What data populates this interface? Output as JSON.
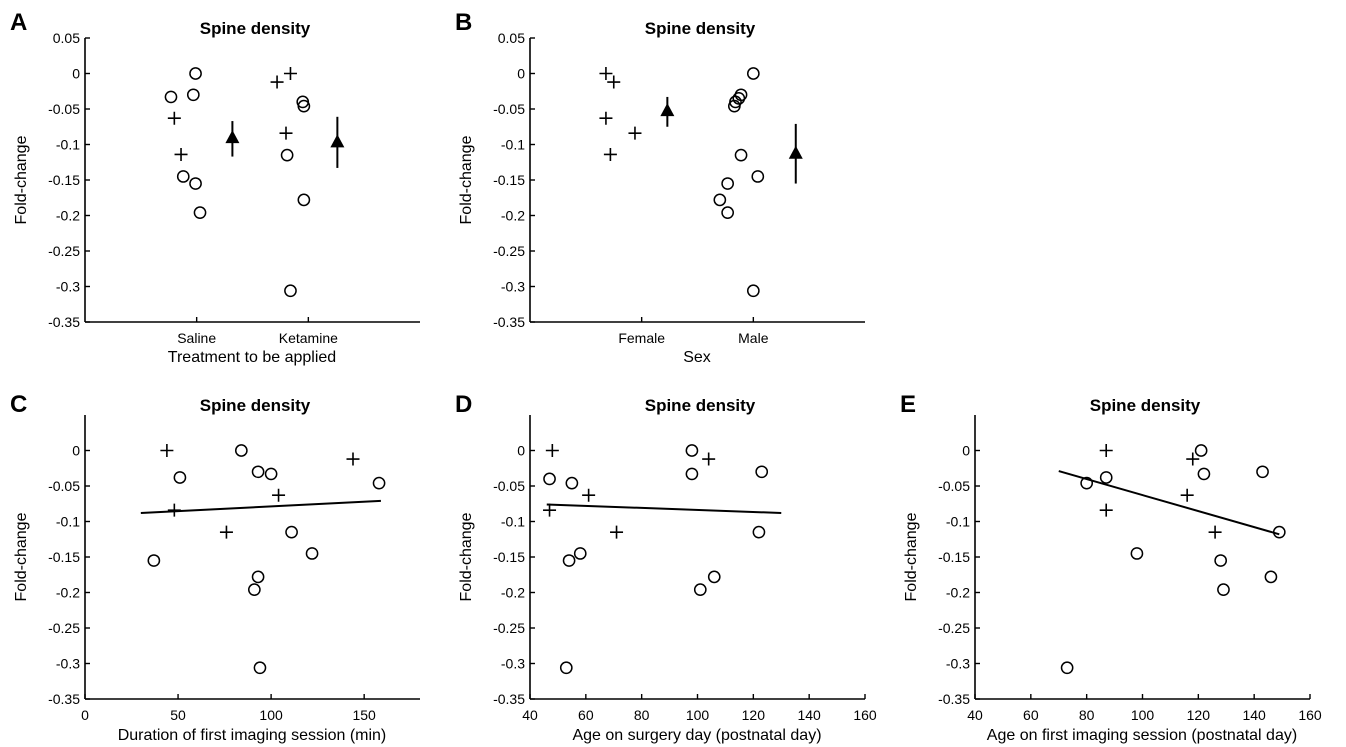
{
  "chart_data": [
    {
      "id": "A",
      "panel_label": "A",
      "type": "scatter",
      "title": "Spine density",
      "xlabel": "Treatment to be applied",
      "ylabel": "Fold-change",
      "ylim": [
        -0.35,
        0.05
      ],
      "yticks": [
        0.05,
        0,
        -0.05,
        -0.1,
        -0.15,
        -0.2,
        -0.25,
        -0.3,
        -0.35
      ],
      "ytick_labels": [
        "0.05",
        "0",
        "-0.05",
        "-0.1",
        "-0.15",
        "-0.2",
        "-0.25",
        "-0.3",
        "-0.35"
      ],
      "xlim": [
        0,
        3
      ],
      "categories": [
        "Saline",
        "Ketamine"
      ],
      "category_positions": [
        1,
        2
      ],
      "points": [
        {
          "x": 0.77,
          "y": -0.033,
          "m": "o"
        },
        {
          "x": 0.8,
          "y": -0.063,
          "m": "+"
        },
        {
          "x": 0.86,
          "y": -0.114,
          "m": "+"
        },
        {
          "x": 0.88,
          "y": -0.145,
          "m": "o"
        },
        {
          "x": 0.97,
          "y": -0.03,
          "m": "o"
        },
        {
          "x": 0.99,
          "y": 0.0,
          "m": "o"
        },
        {
          "x": 0.99,
          "y": -0.155,
          "m": "o"
        },
        {
          "x": 1.03,
          "y": -0.196,
          "m": "o"
        },
        {
          "x": 1.72,
          "y": -0.012,
          "m": "+"
        },
        {
          "x": 1.8,
          "y": -0.084,
          "m": "+"
        },
        {
          "x": 1.81,
          "y": -0.115,
          "m": "o"
        },
        {
          "x": 1.84,
          "y": 0.0,
          "m": "+"
        },
        {
          "x": 1.84,
          "y": -0.306,
          "m": "o"
        },
        {
          "x": 1.95,
          "y": -0.04,
          "m": "o"
        },
        {
          "x": 1.96,
          "y": -0.046,
          "m": "o"
        },
        {
          "x": 1.96,
          "y": -0.178,
          "m": "o"
        }
      ],
      "means": [
        {
          "x": 1.32,
          "y": -0.091,
          "lo": -0.117,
          "hi": -0.067
        },
        {
          "x": 2.26,
          "y": -0.097,
          "lo": -0.133,
          "hi": -0.061
        }
      ]
    },
    {
      "id": "B",
      "panel_label": "B",
      "type": "scatter",
      "title": "Spine density",
      "xlabel": "Sex",
      "ylabel": "Fold-change",
      "ylim": [
        -0.35,
        0.05
      ],
      "yticks": [
        0.05,
        0,
        -0.05,
        -0.1,
        -0.15,
        -0.2,
        -0.25,
        -0.3,
        -0.35
      ],
      "ytick_labels": [
        "0.05",
        "0",
        "-0.05",
        "-0.1",
        "-0.15",
        "-0.2",
        "-0.25",
        "-0.3",
        "-0.35"
      ],
      "xlim": [
        0,
        3
      ],
      "categories": [
        "Female",
        "Male"
      ],
      "category_positions": [
        1,
        2
      ],
      "points": [
        {
          "x": 0.68,
          "y": 0.0,
          "m": "+"
        },
        {
          "x": 0.68,
          "y": -0.063,
          "m": "+"
        },
        {
          "x": 0.72,
          "y": -0.114,
          "m": "+"
        },
        {
          "x": 0.75,
          "y": -0.012,
          "m": "+"
        },
        {
          "x": 0.94,
          "y": -0.084,
          "m": "+"
        },
        {
          "x": 1.7,
          "y": -0.178,
          "m": "o"
        },
        {
          "x": 1.77,
          "y": -0.155,
          "m": "o"
        },
        {
          "x": 1.77,
          "y": -0.196,
          "m": "o"
        },
        {
          "x": 1.83,
          "y": -0.046,
          "m": "o"
        },
        {
          "x": 1.84,
          "y": -0.04,
          "m": "o"
        },
        {
          "x": 1.87,
          "y": -0.035,
          "m": "o"
        },
        {
          "x": 1.89,
          "y": -0.03,
          "m": "o"
        },
        {
          "x": 1.89,
          "y": -0.115,
          "m": "o"
        },
        {
          "x": 2.0,
          "y": 0.0,
          "m": "o"
        },
        {
          "x": 2.0,
          "y": -0.306,
          "m": "o"
        },
        {
          "x": 2.04,
          "y": -0.145,
          "m": "o"
        }
      ],
      "means": [
        {
          "x": 1.23,
          "y": -0.053,
          "lo": -0.075,
          "hi": -0.033
        },
        {
          "x": 2.38,
          "y": -0.113,
          "lo": -0.155,
          "hi": -0.071
        }
      ]
    },
    {
      "id": "C",
      "panel_label": "C",
      "type": "scatter",
      "title": "Spine density",
      "xlabel": "Duration of first imaging session (min)",
      "ylabel": "Fold-change",
      "ylim": [
        -0.35,
        0.05
      ],
      "yticks": [
        0,
        -0.05,
        -0.1,
        -0.15,
        -0.2,
        -0.25,
        -0.3,
        -0.35
      ],
      "ytick_labels": [
        "0",
        "-0.05",
        "-0.1",
        "-0.15",
        "-0.2",
        "-0.25",
        "-0.3",
        "-0.35"
      ],
      "xlim": [
        0,
        180
      ],
      "xticks": [
        0,
        50,
        100,
        150
      ],
      "xtick_labels": [
        "0",
        "50",
        "100",
        "150"
      ],
      "points": [
        {
          "x": 37,
          "y": -0.155,
          "m": "o"
        },
        {
          "x": 44,
          "y": 0.0,
          "m": "+"
        },
        {
          "x": 48,
          "y": -0.084,
          "m": "+"
        },
        {
          "x": 51,
          "y": -0.038,
          "m": "o"
        },
        {
          "x": 76,
          "y": -0.115,
          "m": "+"
        },
        {
          "x": 84,
          "y": 0.0,
          "m": "o"
        },
        {
          "x": 91,
          "y": -0.196,
          "m": "o"
        },
        {
          "x": 93,
          "y": -0.03,
          "m": "o"
        },
        {
          "x": 93,
          "y": -0.178,
          "m": "o"
        },
        {
          "x": 94,
          "y": -0.306,
          "m": "o"
        },
        {
          "x": 100,
          "y": -0.033,
          "m": "o"
        },
        {
          "x": 104,
          "y": -0.063,
          "m": "+"
        },
        {
          "x": 111,
          "y": -0.115,
          "m": "o"
        },
        {
          "x": 122,
          "y": -0.145,
          "m": "o"
        },
        {
          "x": 144,
          "y": -0.012,
          "m": "+"
        },
        {
          "x": 158,
          "y": -0.046,
          "m": "o"
        }
      ],
      "fit": {
        "x": [
          30,
          159
        ],
        "y": [
          -0.088,
          -0.071
        ]
      }
    },
    {
      "id": "D",
      "panel_label": "D",
      "type": "scatter",
      "title": "Spine density",
      "xlabel": "Age on surgery day (postnatal day)",
      "ylabel": "Fold-change",
      "ylim": [
        -0.35,
        0.05
      ],
      "yticks": [
        0,
        -0.05,
        -0.1,
        -0.15,
        -0.2,
        -0.25,
        -0.3,
        -0.35
      ],
      "ytick_labels": [
        "0",
        "-0.05",
        "-0.1",
        "-0.15",
        "-0.2",
        "-0.25",
        "-0.3",
        "-0.35"
      ],
      "xlim": [
        40,
        160
      ],
      "xticks": [
        40,
        60,
        80,
        100,
        120,
        140,
        160
      ],
      "xtick_labels": [
        "40",
        "60",
        "80",
        "100",
        "120",
        "140",
        "160"
      ],
      "points": [
        {
          "x": 47,
          "y": -0.04,
          "m": "o"
        },
        {
          "x": 47,
          "y": -0.084,
          "m": "+"
        },
        {
          "x": 48,
          "y": 0.0,
          "m": "+"
        },
        {
          "x": 53,
          "y": -0.306,
          "m": "o"
        },
        {
          "x": 54,
          "y": -0.155,
          "m": "o"
        },
        {
          "x": 55,
          "y": -0.046,
          "m": "o"
        },
        {
          "x": 58,
          "y": -0.145,
          "m": "o"
        },
        {
          "x": 61,
          "y": -0.063,
          "m": "+"
        },
        {
          "x": 71,
          "y": -0.115,
          "m": "+"
        },
        {
          "x": 98,
          "y": 0.0,
          "m": "o"
        },
        {
          "x": 98,
          "y": -0.033,
          "m": "o"
        },
        {
          "x": 101,
          "y": -0.196,
          "m": "o"
        },
        {
          "x": 104,
          "y": -0.012,
          "m": "+"
        },
        {
          "x": 106,
          "y": -0.178,
          "m": "o"
        },
        {
          "x": 122,
          "y": -0.115,
          "m": "o"
        },
        {
          "x": 123,
          "y": -0.03,
          "m": "o"
        }
      ],
      "fit": {
        "x": [
          46,
          130
        ],
        "y": [
          -0.076,
          -0.088
        ]
      }
    },
    {
      "id": "E",
      "panel_label": "E",
      "type": "scatter",
      "title": "Spine density",
      "xlabel": "Age on first imaging session (postnatal day)",
      "ylabel": "Fold-change",
      "ylim": [
        -0.35,
        0.05
      ],
      "yticks": [
        0,
        -0.05,
        -0.1,
        -0.15,
        -0.2,
        -0.25,
        -0.3,
        -0.35
      ],
      "ytick_labels": [
        "0",
        "-0.05",
        "-0.1",
        "-0.15",
        "-0.2",
        "-0.25",
        "-0.3",
        "-0.35"
      ],
      "xlim": [
        40,
        160
      ],
      "xticks": [
        40,
        60,
        80,
        100,
        120,
        140,
        160
      ],
      "xtick_labels": [
        "40",
        "60",
        "80",
        "100",
        "120",
        "140",
        "160"
      ],
      "points": [
        {
          "x": 73,
          "y": -0.306,
          "m": "o"
        },
        {
          "x": 80,
          "y": -0.046,
          "m": "o"
        },
        {
          "x": 87,
          "y": 0.0,
          "m": "+"
        },
        {
          "x": 87,
          "y": -0.038,
          "m": "o"
        },
        {
          "x": 87,
          "y": -0.084,
          "m": "+"
        },
        {
          "x": 98,
          "y": -0.145,
          "m": "o"
        },
        {
          "x": 116,
          "y": -0.063,
          "m": "+"
        },
        {
          "x": 118,
          "y": -0.012,
          "m": "+"
        },
        {
          "x": 121,
          "y": 0.0,
          "m": "o"
        },
        {
          "x": 122,
          "y": -0.033,
          "m": "o"
        },
        {
          "x": 126,
          "y": -0.115,
          "m": "+"
        },
        {
          "x": 128,
          "y": -0.155,
          "m": "o"
        },
        {
          "x": 129,
          "y": -0.196,
          "m": "o"
        },
        {
          "x": 143,
          "y": -0.03,
          "m": "o"
        },
        {
          "x": 146,
          "y": -0.178,
          "m": "o"
        },
        {
          "x": 149,
          "y": -0.115,
          "m": "o"
        }
      ],
      "fit": {
        "x": [
          70,
          149
        ],
        "y": [
          -0.029,
          -0.118
        ]
      }
    }
  ]
}
